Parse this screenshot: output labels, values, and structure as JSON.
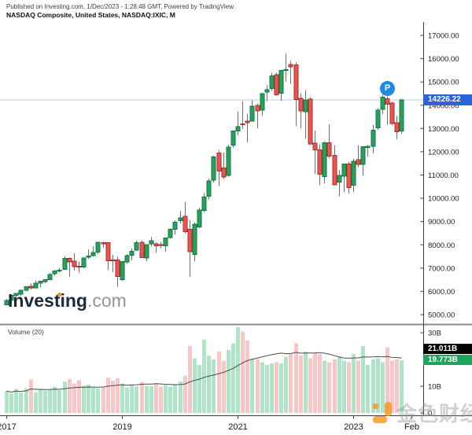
{
  "header": {
    "published_line": "Published on Investing.com, 1/Dec/2023 - 1:28:48 GMT, Powered by TradingView.",
    "symbol_line": "NASDAQ Composite, United States, NASDAQ:IXIC, M"
  },
  "watermark": {
    "brand_bold": "Investing",
    "brand_suffix": ".com"
  },
  "bottom_watermark": {
    "text": "金色财经"
  },
  "badge": {
    "label": "P"
  },
  "price_scale": {
    "current_price": 14226.22,
    "current_price_label": "14226.22",
    "ticks": [
      {
        "value": 17000,
        "label": "17000.00"
      },
      {
        "value": 16000,
        "label": "16000.00"
      },
      {
        "value": 15000,
        "label": "15000.00"
      },
      {
        "value": 14000,
        "label": "14000.00"
      },
      {
        "value": 13000,
        "label": "13000.00"
      },
      {
        "value": 12000,
        "label": "12000.00"
      },
      {
        "value": 11000,
        "label": "11000.00"
      },
      {
        "value": 10000,
        "label": "10000.00"
      },
      {
        "value": 9000,
        "label": "9000.00"
      },
      {
        "value": 8000,
        "label": "8000.00"
      },
      {
        "value": 7000,
        "label": "7000.00"
      },
      {
        "value": 6000,
        "label": "6000.00"
      },
      {
        "value": 5000,
        "label": "5000.00"
      }
    ]
  },
  "volume_pane": {
    "indicator_label": "Volume (20)",
    "ma_label": "21.011B",
    "last_volume_label": "19.773B",
    "ticks": [
      {
        "value": 30,
        "label": "30B"
      },
      {
        "value": 10,
        "label": "10B"
      },
      {
        "value": 0,
        "label": "0"
      }
    ]
  },
  "time_scale": {
    "labels": [
      {
        "index": 0,
        "label": "2017"
      },
      {
        "index": 24,
        "label": "2019"
      },
      {
        "index": 48,
        "label": "2021"
      },
      {
        "index": 72,
        "label": "2023"
      },
      {
        "index": 84,
        "label": "Feb"
      }
    ]
  },
  "colors": {
    "up_body": "#2ba05c",
    "up_border": "#0e7a42",
    "down_body": "#ef5350",
    "down_border": "#a33030",
    "wick": "#6f6f6f",
    "vol_up": "#aee4c8",
    "vol_down": "#f6c7c6",
    "vol_ma_line": "#4a4a4a",
    "price_line": "#b9cce6",
    "price_tag_bg": "#2e62d9",
    "badge_bg": "#1e88e5",
    "ma_tag_bg": "#000000",
    "vol_tag_bg": "#1fa45b",
    "axis_line": "#3c3c3c",
    "separator": "#8a8a8a",
    "brand_orange": "#f7941d",
    "text": "#1b1b1b"
  },
  "chart_data": {
    "type": "candlestick+volume",
    "title": "NASDAQ Composite, United States, NASDAQ:IXIC, M",
    "interval": "monthly",
    "x_range": [
      "2017-01",
      "2023-11"
    ],
    "price_axis_range": [
      5000,
      17000
    ],
    "volume_axis_range_billions": [
      0,
      30
    ],
    "grid": false,
    "last_close": 14226.22,
    "volume_ma_period": 20,
    "columns": [
      "month",
      "open",
      "high",
      "low",
      "close",
      "volume_billions"
    ],
    "rows": [
      [
        "2017-01",
        5425,
        5670,
        5397,
        5615,
        8.2
      ],
      [
        "2017-02",
        5618,
        5868,
        5596,
        5825,
        7.4
      ],
      [
        "2017-03",
        5833,
        5928,
        5769,
        5912,
        9.0
      ],
      [
        "2017-04",
        5887,
        6074,
        5805,
        6048,
        7.6
      ],
      [
        "2017-05",
        6051,
        6222,
        5996,
        6199,
        9.3
      ],
      [
        "2017-06",
        6222,
        6342,
        6081,
        6140,
        12.5
      ],
      [
        "2017-07",
        6152,
        6460,
        6131,
        6348,
        7.8
      ],
      [
        "2017-08",
        6355,
        6461,
        6177,
        6429,
        8.8
      ],
      [
        "2017-09",
        6410,
        6522,
        6343,
        6496,
        8.4
      ],
      [
        "2017-10",
        6506,
        6795,
        6485,
        6728,
        8.8
      ],
      [
        "2017-11",
        6755,
        6914,
        6667,
        6874,
        9.8
      ],
      [
        "2017-12",
        6897,
        7004,
        6821,
        6903,
        8.6
      ],
      [
        "2018-01",
        6938,
        7506,
        6924,
        7411,
        11.8
      ],
      [
        "2018-02",
        7417,
        7461,
        6630,
        7273,
        12.6
      ],
      [
        "2018-03",
        7300,
        7637,
        6901,
        7063,
        11.0
      ],
      [
        "2018-04",
        7076,
        7283,
        6805,
        7066,
        12.2
      ],
      [
        "2018-05",
        7048,
        7474,
        6992,
        7442,
        10.2
      ],
      [
        "2018-06",
        7462,
        7807,
        7393,
        7510,
        10.6
      ],
      [
        "2018-07",
        7540,
        7933,
        7499,
        7672,
        9.4
      ],
      [
        "2018-08",
        7694,
        8133,
        7609,
        8109,
        9.2
      ],
      [
        "2018-09",
        8091,
        8134,
        7873,
        8046,
        9.8
      ],
      [
        "2018-10",
        8085,
        8107,
        6922,
        7306,
        13.2
      ],
      [
        "2018-11",
        7356,
        7574,
        6830,
        7331,
        12.0
      ],
      [
        "2018-12",
        7355,
        7486,
        6190,
        6635,
        13.0
      ],
      [
        "2019-01",
        6506,
        7296,
        6457,
        7282,
        11.0
      ],
      [
        "2019-02",
        7265,
        7603,
        7187,
        7533,
        9.6
      ],
      [
        "2019-03",
        7557,
        7850,
        7332,
        7729,
        10.4
      ],
      [
        "2019-04",
        7769,
        8176,
        7744,
        8095,
        9.8
      ],
      [
        "2019-05",
        8110,
        8177,
        7448,
        7453,
        11.6
      ],
      [
        "2019-06",
        7436,
        8030,
        7292,
        8006,
        10.2
      ],
      [
        "2019-07",
        8051,
        8339,
        7938,
        8175,
        10.0
      ],
      [
        "2019-08",
        8050,
        8120,
        7662,
        7963,
        11.2
      ],
      [
        "2019-09",
        8001,
        8119,
        7852,
        7999,
        9.8
      ],
      [
        "2019-10",
        7963,
        8312,
        7700,
        8292,
        10.4
      ],
      [
        "2019-11",
        8314,
        8705,
        8264,
        8665,
        9.9
      ],
      [
        "2019-12",
        8672,
        9052,
        8436,
        8973,
        10.6
      ],
      [
        "2020-01",
        9039,
        9451,
        8921,
        9151,
        11.8
      ],
      [
        "2020-02",
        9226,
        9838,
        8492,
        8567,
        14.0
      ],
      [
        "2020-03",
        8668,
        9070,
        6631,
        7700,
        25.2
      ],
      [
        "2020-04",
        7584,
        8957,
        7288,
        8890,
        20.5
      ],
      [
        "2020-05",
        8770,
        9598,
        8705,
        9490,
        18.0
      ],
      [
        "2020-06",
        9471,
        10221,
        9403,
        10059,
        27.5
      ],
      [
        "2020-07",
        10094,
        10840,
        9951,
        10745,
        21.5
      ],
      [
        "2020-08",
        10786,
        11829,
        10678,
        11775,
        20.0
      ],
      [
        "2020-09",
        11942,
        12074,
        10519,
        11168,
        23.0
      ],
      [
        "2020-10",
        11306,
        11965,
        10822,
        10912,
        19.5
      ],
      [
        "2020-11",
        10974,
        12296,
        10931,
        12199,
        23.5
      ],
      [
        "2020-12",
        12277,
        12924,
        12173,
        12888,
        26.0
      ],
      [
        "2021-01",
        12898,
        13729,
        12697,
        13071,
        32.0
      ],
      [
        "2021-02",
        13200,
        14175,
        12985,
        13192,
        30.5
      ],
      [
        "2021-03",
        13319,
        13620,
        12397,
        13247,
        27.0
      ],
      [
        "2021-04",
        13322,
        14211,
        13317,
        13963,
        20.5
      ],
      [
        "2021-05",
        13998,
        14073,
        13003,
        13749,
        20.0
      ],
      [
        "2021-06",
        13792,
        14535,
        13548,
        14504,
        19.0
      ],
      [
        "2021-07",
        14570,
        14863,
        14178,
        14673,
        18.0
      ],
      [
        "2021-08",
        14715,
        15380,
        14615,
        15259,
        18.5
      ],
      [
        "2021-09",
        15309,
        15403,
        14414,
        14449,
        19.0
      ],
      [
        "2021-10",
        14520,
        15505,
        14181,
        15498,
        18.5
      ],
      [
        "2021-11",
        15533,
        16212,
        15019,
        15538,
        21.0
      ],
      [
        "2021-12",
        15755,
        15901,
        14931,
        15645,
        22.0
      ],
      [
        "2022-01",
        15733,
        15852,
        13095,
        14240,
        26.0
      ],
      [
        "2022-02",
        14298,
        14509,
        13007,
        13751,
        21.5
      ],
      [
        "2022-03",
        13718,
        14646,
        12555,
        14221,
        23.0
      ],
      [
        "2022-04",
        14255,
        14343,
        12286,
        12335,
        20.5
      ],
      [
        "2022-05",
        12369,
        12909,
        11035,
        12081,
        22.5
      ],
      [
        "2022-06",
        12090,
        12320,
        10565,
        11029,
        22.0
      ],
      [
        "2022-07",
        10935,
        12446,
        10636,
        12391,
        19.5
      ],
      [
        "2022-08",
        12392,
        13181,
        11714,
        11816,
        19.0
      ],
      [
        "2022-09",
        11851,
        12270,
        10572,
        10576,
        20.0
      ],
      [
        "2022-10",
        10693,
        11210,
        10089,
        10988,
        21.0
      ],
      [
        "2022-11",
        10956,
        11492,
        10262,
        11468,
        19.5
      ],
      [
        "2022-12",
        11479,
        11571,
        10207,
        10466,
        19.0
      ],
      [
        "2023-01",
        10562,
        11691,
        10265,
        11585,
        22.0
      ],
      [
        "2023-02",
        11651,
        12270,
        11334,
        11456,
        19.5
      ],
      [
        "2023-03",
        11462,
        12227,
        10982,
        12222,
        25.0
      ],
      [
        "2023-04",
        12190,
        12290,
        11798,
        12227,
        18.0
      ],
      [
        "2023-05",
        12242,
        13154,
        11931,
        12935,
        20.0
      ],
      [
        "2023-06",
        13020,
        13864,
        12938,
        13788,
        20.5
      ],
      [
        "2023-07",
        13816,
        14446,
        13625,
        14346,
        19.0
      ],
      [
        "2023-08",
        14275,
        14380,
        13161,
        14035,
        24.5
      ],
      [
        "2023-09",
        14100,
        14150,
        13132,
        13219,
        19.5
      ],
      [
        "2023-10",
        13240,
        13540,
        12543,
        12851,
        20.0
      ],
      [
        "2023-11",
        12900,
        14283,
        12766,
        14226.22,
        19.773
      ]
    ]
  }
}
